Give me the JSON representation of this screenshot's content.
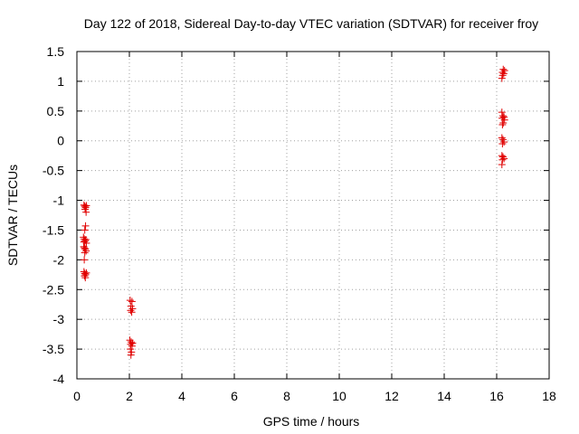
{
  "chart_data": {
    "type": "scatter",
    "title": "Day 122 of 2018, Sidereal Day-to-day VTEC variation (SDTVAR) for receiver froy",
    "xlabel": "GPS time / hours",
    "ylabel": "SDTVAR / TECUs",
    "xlim": [
      0,
      18
    ],
    "ylim": [
      -4,
      1.5
    ],
    "xticks": [
      0,
      2,
      4,
      6,
      8,
      10,
      12,
      14,
      16,
      18
    ],
    "yticks": [
      -4,
      -3.5,
      -3,
      -2.5,
      -2,
      -1.5,
      -1,
      -0.5,
      0,
      0.5,
      1,
      1.5
    ],
    "ytick_labels": [
      "-4",
      "-3.5",
      "-3",
      "-2.5",
      "-2",
      "-1.5",
      "-1",
      "-0.5",
      "0",
      "0.5",
      "1",
      "1.5"
    ],
    "grid": true,
    "marker": "+",
    "color": "#e00000",
    "series": [
      {
        "points": [
          [
            0.27,
            -1.08
          ],
          [
            0.3,
            -1.1
          ],
          [
            0.33,
            -1.12
          ],
          [
            0.36,
            -1.09
          ],
          [
            0.31,
            -1.15
          ],
          [
            0.35,
            -1.2
          ],
          [
            0.33,
            -1.43
          ],
          [
            0.3,
            -1.5
          ],
          [
            0.25,
            -1.62
          ],
          [
            0.28,
            -1.65
          ],
          [
            0.31,
            -1.68
          ],
          [
            0.34,
            -1.66
          ],
          [
            0.27,
            -1.7
          ],
          [
            0.36,
            -1.72
          ],
          [
            0.26,
            -1.78
          ],
          [
            0.29,
            -1.8
          ],
          [
            0.32,
            -1.82
          ],
          [
            0.35,
            -1.85
          ],
          [
            0.3,
            -1.88
          ],
          [
            0.28,
            -2.0
          ],
          [
            0.27,
            -2.2
          ],
          [
            0.3,
            -2.23
          ],
          [
            0.33,
            -2.25
          ],
          [
            0.36,
            -2.22
          ],
          [
            0.29,
            -2.27
          ],
          [
            0.32,
            -2.3
          ],
          [
            2.03,
            -2.68
          ],
          [
            2.1,
            -2.7
          ],
          [
            2.06,
            -2.78
          ],
          [
            2.12,
            -2.82
          ],
          [
            2.05,
            -2.85
          ],
          [
            2.09,
            -2.88
          ],
          [
            2.02,
            -3.35
          ],
          [
            2.07,
            -3.38
          ],
          [
            2.12,
            -3.4
          ],
          [
            2.05,
            -3.42
          ],
          [
            2.1,
            -3.45
          ],
          [
            2.04,
            -3.5
          ],
          [
            2.08,
            -3.55
          ],
          [
            2.06,
            -3.6
          ],
          [
            16.2,
            1.05
          ],
          [
            16.23,
            1.1
          ],
          [
            16.27,
            1.13
          ],
          [
            16.22,
            1.15
          ],
          [
            16.3,
            1.18
          ],
          [
            16.25,
            1.2
          ],
          [
            16.2,
            0.48
          ],
          [
            16.24,
            0.42
          ],
          [
            16.28,
            0.4
          ],
          [
            16.21,
            0.38
          ],
          [
            16.3,
            0.35
          ],
          [
            16.25,
            0.3
          ],
          [
            16.22,
            0.27
          ],
          [
            16.2,
            0.05
          ],
          [
            16.24,
            0.02
          ],
          [
            16.28,
            -0.02
          ],
          [
            16.22,
            -0.05
          ],
          [
            16.2,
            -0.25
          ],
          [
            16.24,
            -0.27
          ],
          [
            16.28,
            -0.3
          ],
          [
            16.22,
            -0.32
          ],
          [
            16.2,
            -0.4
          ]
        ]
      }
    ]
  }
}
